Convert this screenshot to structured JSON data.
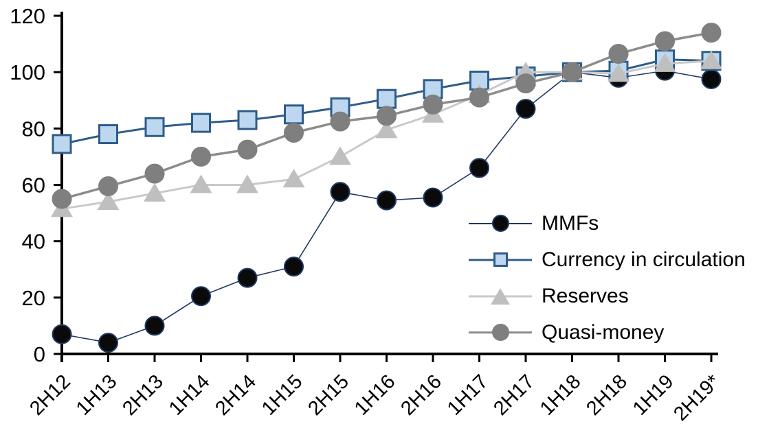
{
  "page": {
    "background": "#FFFFFF"
  },
  "chart_data": {
    "type": "line",
    "title": "",
    "xlabel": "",
    "ylabel": "",
    "ylim": [
      0,
      120
    ],
    "ytick_step": 20,
    "ytick_labels": [
      "0",
      "20",
      "40",
      "60",
      "80",
      "100",
      "120"
    ],
    "grid": false,
    "legend_position": "center-right",
    "axis_color": "#000000",
    "text_color": "#000000",
    "categories": [
      "2H12",
      "1H13",
      "2H13",
      "1H14",
      "2H14",
      "1H15",
      "2H15",
      "1H16",
      "2H16",
      "1H17",
      "2H17",
      "1H18",
      "2H18",
      "1H19",
      "2H19*"
    ],
    "series": [
      {
        "name": "MMFs",
        "marker": "circle",
        "line_color": "#1F3864",
        "line_width": 1.6,
        "marker_fill": "#0A0A0A",
        "marker_stroke": "#1F3864",
        "values": [
          7,
          4,
          10,
          20.5,
          27,
          31,
          57.5,
          54.5,
          55.5,
          66,
          87,
          100,
          98,
          100.5,
          97.5
        ]
      },
      {
        "name": "Currency in circulation",
        "marker": "square",
        "line_color": "#2E5C8A",
        "line_width": 3,
        "marker_fill": "#BDD7EE",
        "marker_stroke": "#2E5C8A",
        "values": [
          74.5,
          78,
          80.5,
          82,
          83,
          85,
          87.5,
          90.5,
          94,
          97,
          98.5,
          100,
          100.5,
          104.5,
          104
        ]
      },
      {
        "name": "Reserves",
        "marker": "triangle",
        "line_color": "#C9C9C9",
        "line_width": 3,
        "marker_fill": "#BFBFBF",
        "marker_stroke": "#BFBFBF",
        "values": [
          51.5,
          54,
          57,
          60,
          60,
          62,
          70,
          79.5,
          85,
          92,
          100,
          100,
          99.5,
          103,
          104
        ]
      },
      {
        "name": "Quasi-money",
        "marker": "circle",
        "line_color": "#8C8C8C",
        "line_width": 3.5,
        "marker_fill": "#7F7F7F",
        "marker_stroke": "#7F7F7F",
        "values": [
          55,
          59.5,
          64,
          70,
          72.5,
          78.5,
          82.5,
          84.5,
          88.5,
          91,
          96,
          100,
          106.5,
          111,
          114
        ]
      }
    ]
  }
}
